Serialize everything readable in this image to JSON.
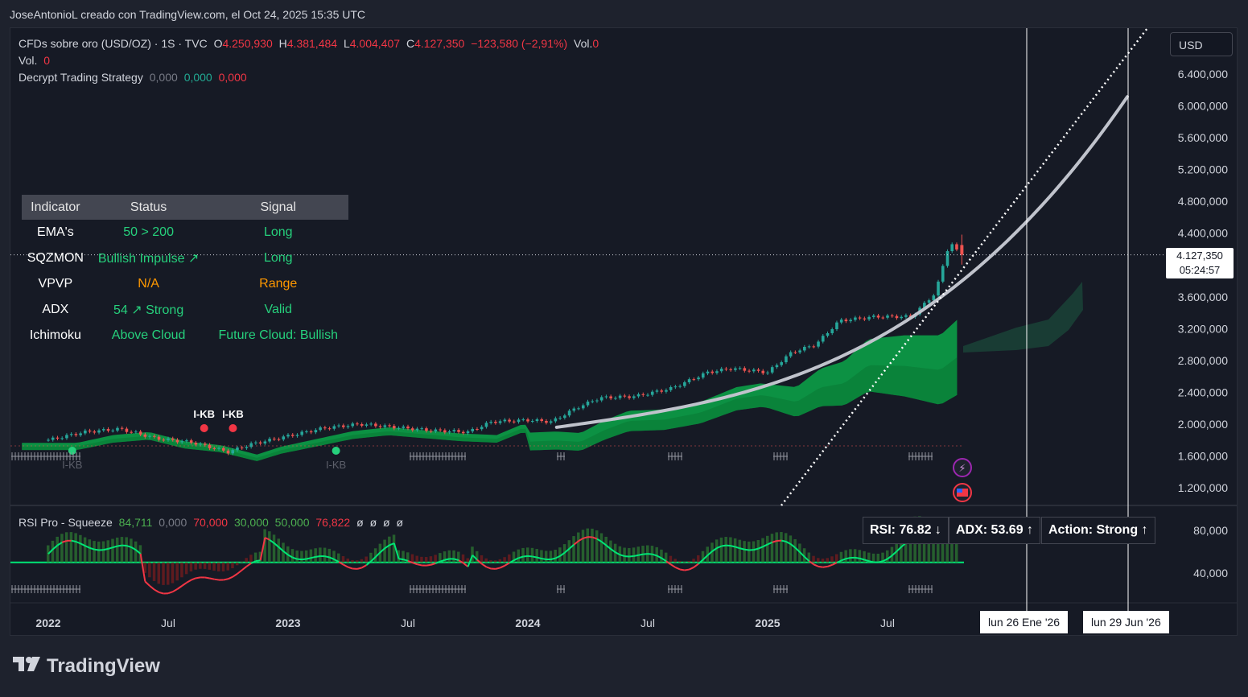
{
  "header": {
    "credit": "JoseAntonioL creado con TradingView.com, el Oct 24, 2025 15:35 UTC"
  },
  "legend": {
    "symbol": "CFDs sobre oro (USD/OZ) · 1S · TVC",
    "open_label": "O",
    "open": "4.250,930",
    "high_label": "H",
    "high": "4.381,484",
    "low_label": "L",
    "low": "4.004,407",
    "close_label": "C",
    "close": "4.127,350",
    "change": "−123,580 (−2,91%)",
    "vol_inline_label": "Vol.",
    "vol_inline": "0",
    "vol_label": "Vol.",
    "vol": "0",
    "strategy_label": "Decrypt Trading Strategy",
    "strategy_values": [
      "0,000",
      "0,000",
      "0,000"
    ]
  },
  "indicator_table": {
    "headers": [
      "Indicator",
      "Status",
      "Signal"
    ],
    "rows": [
      {
        "indicator": "EMA's",
        "status": "50 > 200",
        "signal": "Long",
        "status_color": "#26d07c",
        "signal_color": "#26d07c"
      },
      {
        "indicator": "SQZMON",
        "status": "Bullish Impulse ↗",
        "signal": "Long",
        "status_color": "#26d07c",
        "signal_color": "#26d07c"
      },
      {
        "indicator": "VPVP",
        "status": "N/A",
        "signal": "Range",
        "status_color": "#ff9800",
        "signal_color": "#ff9800"
      },
      {
        "indicator": "ADX",
        "status": "54 ↗ Strong",
        "signal": "Valid",
        "status_color": "#26d07c",
        "signal_color": "#26d07c"
      },
      {
        "indicator": "Ichimoku",
        "status": "Above Cloud",
        "signal": "Future Cloud: Bullish",
        "status_color": "#26d07c",
        "signal_color": "#26d07c"
      }
    ]
  },
  "currency_button": "USD",
  "last_price": {
    "value": "4.127,350",
    "countdown": "05:24:57"
  },
  "markers": {
    "ikb_top": [
      "I-KB",
      "I-KB"
    ],
    "ikb_bottom": [
      "I-KB",
      "I-KB"
    ]
  },
  "rsi_legend": {
    "name": "RSI Pro - Squeeze",
    "values": [
      "84,711",
      "0,000",
      "70,000",
      "30,000",
      "50,000",
      "76,822"
    ],
    "empty": [
      "ø",
      "ø",
      "ø",
      "ø"
    ]
  },
  "info_boxes": {
    "rsi": "RSI: 76.82 ↓",
    "adx": "ADX: 53.69 ↑",
    "action": "Action: Strong ↑"
  },
  "date_flags": [
    "lun 26 Ene '26",
    "lun 29 Jun '26"
  ],
  "brand": "TradingView",
  "chart_data": {
    "type": "candlestick",
    "title": "CFDs sobre oro (USD/OZ)",
    "timeframe": "1S",
    "x_tick_labels": [
      "2022",
      "Jul",
      "2023",
      "Jul",
      "2024",
      "Jul",
      "2025",
      "Jul"
    ],
    "y_tick_labels": [
      "6.400,000",
      "6.000,000",
      "5.600,000",
      "5.200,000",
      "4.800,000",
      "4.400,000",
      "3.600,000",
      "3.200,000",
      "2.800,000",
      "2.400,000",
      "2.000,000",
      "1.600,000",
      "1.200,000"
    ],
    "y_ticks": [
      6400,
      6000,
      5600,
      5200,
      4800,
      4400,
      3600,
      3200,
      2800,
      2400,
      2000,
      1600,
      1200
    ],
    "rsi_tick_labels": [
      "80,000",
      "40,000"
    ],
    "rsi_ticks": [
      80,
      40
    ],
    "price_series": {
      "x": [
        2022.0,
        2022.15,
        2022.3,
        2022.45,
        2022.6,
        2022.75,
        2022.85,
        2023.0,
        2023.15,
        2023.3,
        2023.45,
        2023.6,
        2023.75,
        2023.85,
        2024.0,
        2024.1,
        2024.2,
        2024.3,
        2024.45,
        2024.6,
        2024.75,
        2024.85,
        2025.0,
        2025.1,
        2025.2,
        2025.3,
        2025.45,
        2025.6,
        2025.7,
        2025.76,
        2025.8
      ],
      "close": [
        1800,
        1900,
        1940,
        1820,
        1770,
        1650,
        1750,
        1850,
        1950,
        2000,
        1960,
        1920,
        1900,
        2030,
        2050,
        2030,
        2200,
        2330,
        2350,
        2450,
        2650,
        2700,
        2650,
        2900,
        3000,
        3300,
        3350,
        3350,
        3650,
        4300,
        4127
      ]
    },
    "last_close": 4127.35,
    "last_open": 4250.93,
    "last_high": 4381.484,
    "last_low": 4004.407,
    "rsi_last": 76.82,
    "adx_last": 53.69
  }
}
